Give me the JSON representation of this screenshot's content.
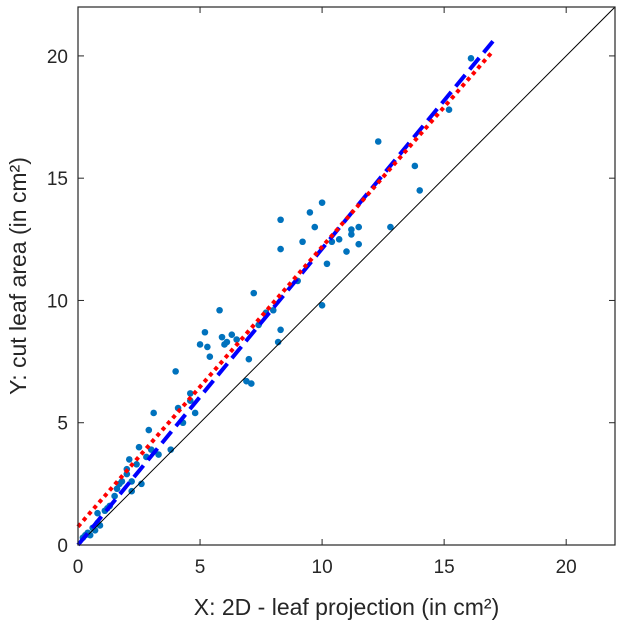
{
  "chart_data": {
    "type": "scatter",
    "title": "",
    "xlabel": "X: 2D - leaf projection (in cm²)",
    "ylabel": "Y: cut leaf area (in cm²)",
    "xlim": [
      0,
      22
    ],
    "ylim": [
      0,
      22
    ],
    "xticks": [
      0,
      5,
      10,
      15,
      20
    ],
    "yticks": [
      0,
      5,
      10,
      15,
      20
    ],
    "xtick_labels": [
      "0",
      "5",
      "10",
      "15",
      "20"
    ],
    "ytick_labels": [
      "0",
      "5",
      "10",
      "15",
      "20"
    ],
    "grid": false,
    "legend": "none",
    "colors": {
      "points": "#0072BD",
      "identity": "#000000",
      "dashed": "#0000FF",
      "dotted": "#FF0000",
      "axes": "#262626"
    },
    "series": [
      {
        "kind": "points",
        "points": [
          [
            0.2,
            0.3
          ],
          [
            0.3,
            0.4
          ],
          [
            0.4,
            0.5
          ],
          [
            0.5,
            0.4
          ],
          [
            0.6,
            0.7
          ],
          [
            0.7,
            0.6
          ],
          [
            0.8,
            0.9
          ],
          [
            0.8,
            1.3
          ],
          [
            0.9,
            0.8
          ],
          [
            1.1,
            1.4
          ],
          [
            1.2,
            1.5
          ],
          [
            1.3,
            1.6
          ],
          [
            1.5,
            2.0
          ],
          [
            1.6,
            2.3
          ],
          [
            1.7,
            2.5
          ],
          [
            1.8,
            2.6
          ],
          [
            2.0,
            2.9
          ],
          [
            2.0,
            3.1
          ],
          [
            2.1,
            3.5
          ],
          [
            2.2,
            2.6
          ],
          [
            2.2,
            2.2
          ],
          [
            2.4,
            3.3
          ],
          [
            2.5,
            4.0
          ],
          [
            2.6,
            2.5
          ],
          [
            2.8,
            3.6
          ],
          [
            2.9,
            4.7
          ],
          [
            3.0,
            3.9
          ],
          [
            3.1,
            5.4
          ],
          [
            3.3,
            3.7
          ],
          [
            3.8,
            3.9
          ],
          [
            4.0,
            7.1
          ],
          [
            4.1,
            5.6
          ],
          [
            4.3,
            5.0
          ],
          [
            4.6,
            5.9
          ],
          [
            4.6,
            6.2
          ],
          [
            4.8,
            5.4
          ],
          [
            5.0,
            8.2
          ],
          [
            5.2,
            8.7
          ],
          [
            5.3,
            8.1
          ],
          [
            5.4,
            7.7
          ],
          [
            5.8,
            9.6
          ],
          [
            5.9,
            8.5
          ],
          [
            6.0,
            8.2
          ],
          [
            6.1,
            8.3
          ],
          [
            6.3,
            8.6
          ],
          [
            6.5,
            8.4
          ],
          [
            6.9,
            6.7
          ],
          [
            7.0,
            7.6
          ],
          [
            7.1,
            6.6
          ],
          [
            7.2,
            10.3
          ],
          [
            7.4,
            9.0
          ],
          [
            7.7,
            9.5
          ],
          [
            8.0,
            9.6
          ],
          [
            8.2,
            8.3
          ],
          [
            8.3,
            12.1
          ],
          [
            8.3,
            13.3
          ],
          [
            8.3,
            8.8
          ],
          [
            9.0,
            10.8
          ],
          [
            9.2,
            12.4
          ],
          [
            9.5,
            13.6
          ],
          [
            9.7,
            13.0
          ],
          [
            10.0,
            9.8
          ],
          [
            10.0,
            14.0
          ],
          [
            10.2,
            11.5
          ],
          [
            10.4,
            12.4
          ],
          [
            10.7,
            12.5
          ],
          [
            11.0,
            12.0
          ],
          [
            11.2,
            12.7
          ],
          [
            11.2,
            12.9
          ],
          [
            11.5,
            13.0
          ],
          [
            11.5,
            12.3
          ],
          [
            12.3,
            16.5
          ],
          [
            12.8,
            13.0
          ],
          [
            13.8,
            15.5
          ],
          [
            14.0,
            14.5
          ],
          [
            15.2,
            17.8
          ],
          [
            16.1,
            19.9
          ]
        ]
      },
      {
        "kind": "line",
        "style": "solid",
        "x": [
          0,
          22
        ],
        "y": [
          0,
          22
        ]
      },
      {
        "kind": "line",
        "style": "dashed",
        "x": [
          0,
          17
        ],
        "y": [
          0,
          20.6
        ]
      },
      {
        "kind": "line",
        "style": "dotted",
        "x": [
          0,
          17
        ],
        "y": [
          0.75,
          20.2
        ]
      }
    ]
  }
}
